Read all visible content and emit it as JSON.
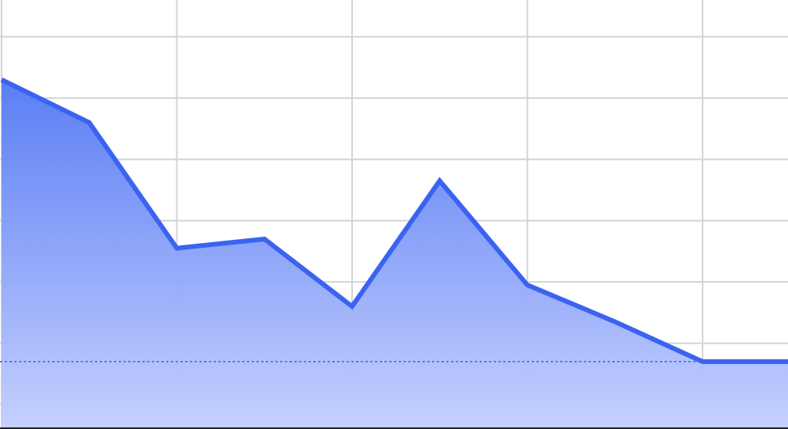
{
  "chart_data": {
    "type": "area",
    "title": "",
    "xlabel": "",
    "ylabel": "",
    "grid": true,
    "legend": "none",
    "x": [
      0,
      1,
      2,
      3,
      4,
      5,
      6,
      7,
      8,
      9
    ],
    "xlim": [
      0,
      9
    ],
    "ylim": [
      -0.4,
      6.6
    ],
    "series": [
      {
        "values": [
          5.3,
          4.6,
          2.55,
          2.7,
          1.6,
          3.65,
          1.95,
          1.35,
          0.7,
          0.7
        ]
      }
    ],
    "reference_line": {
      "value": 0.7,
      "style": "dotted"
    }
  },
  "colors": {
    "line": "#3b63f0",
    "fill_top": "#5277f3",
    "fill_bottom": "#c2ceff",
    "grid": "#d0d4d9",
    "axis": "#1f2227"
  }
}
